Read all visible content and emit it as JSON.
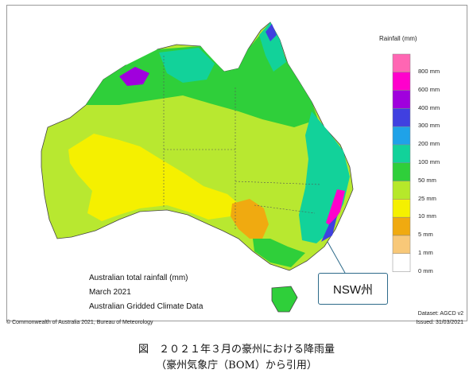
{
  "legend": {
    "title": "Rainfall (mm)",
    "items": [
      {
        "label": "800 mm",
        "color": "#ff66b3"
      },
      {
        "label": "600 mm",
        "color": "#ff00cc"
      },
      {
        "label": "400 mm",
        "color": "#a000dd"
      },
      {
        "label": "300 mm",
        "color": "#4040e0"
      },
      {
        "label": "200 mm",
        "color": "#1fa2e8"
      },
      {
        "label": "100 mm",
        "color": "#12d29a"
      },
      {
        "label": "50 mm",
        "color": "#2fcf3a"
      },
      {
        "label": "25 mm",
        "color": "#b6e82a"
      },
      {
        "label": "10 mm",
        "color": "#f5f000"
      },
      {
        "label": "5 mm",
        "color": "#f0aa10"
      },
      {
        "label": "1 mm",
        "color": "#f8c878"
      },
      {
        "label": "0 mm",
        "color": "#ffffff"
      }
    ]
  },
  "map_titles": {
    "line1": "Australian total rainfall (mm)",
    "line2": "March 2021",
    "line3": "Australian Gridded Climate Data"
  },
  "callout": "NSW州",
  "footer": {
    "copyright": "© Commonwealth of Australia 2021, Bureau of Meteorology",
    "dataset": "Dataset: AGCD v2",
    "issued": "Issued: 31/03/2021"
  },
  "caption": {
    "line1": "図　２０２１年３月の豪州における降雨量",
    "line2": "（豪州気象庁（BOM）から引用）"
  }
}
